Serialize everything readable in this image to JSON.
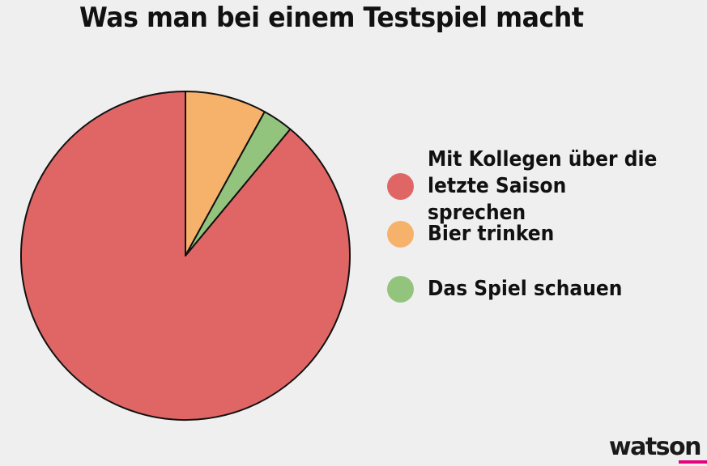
{
  "title": "Was man bei einem Testspiel macht",
  "logo_text": "watson",
  "logo_accent_color": "#e5007d",
  "chart_data": {
    "type": "pie",
    "title": "Was man bei einem Testspiel macht",
    "legend_position": "right",
    "slices": [
      {
        "label": "Mit Kollegen über die\nletzte Saison sprechen",
        "value": 89,
        "color": "#e06666"
      },
      {
        "label": "Bier trinken",
        "value": 8,
        "color": "#f6b26b"
      },
      {
        "label": "Das Spiel schauen",
        "value": 3,
        "color": "#93c47d"
      }
    ]
  }
}
